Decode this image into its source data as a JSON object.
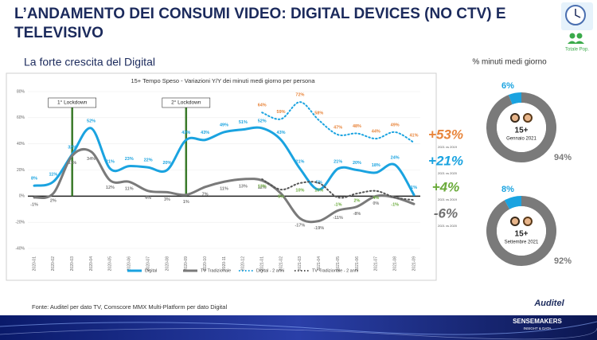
{
  "slide": {
    "title_lines": [
      "L’ANDAMENTO DEI CONSUMI VIDEO: DIGITAL DEVICES (NO CTV) E",
      "TELEVISIVO"
    ],
    "subtitle": "La forte crescita del Digital",
    "target_label": "Totale Pop.",
    "donut_heading": "% minuti medi giorno",
    "source": "Fonte: Auditel per dato TV, Comscore MMX Multi-Platform per dato Digital",
    "logo_auditel": "Auditel",
    "logo_sensemakers": "SENSEMAKERS",
    "logo_tagline": "INSIGHT & DATA"
  },
  "chart_data": [
    {
      "type": "line",
      "title": "15+ Tempo Speso - Variazioni Y/Y dei minuti medi giorno per persona",
      "categories": [
        "2020-01",
        "2020-02",
        "2020-03",
        "2020-04",
        "2020-05",
        "2020-06",
        "2020-07",
        "2020-08",
        "2020-09",
        "2020-10",
        "2020-11",
        "2020-12",
        "2021-01",
        "2021-02",
        "2021-03",
        "2021-04",
        "2021-05",
        "2021-06",
        "2021-07",
        "2021-08",
        "2021-09"
      ],
      "ylim": [
        -40,
        80
      ],
      "yticks": [
        {
          "value": -40,
          "label": "-40%"
        },
        {
          "value": -20,
          "label": "-20%"
        },
        {
          "value": 0,
          "label": "0%"
        },
        {
          "value": 20,
          "label": "20%"
        },
        {
          "value": 40,
          "label": "40%"
        },
        {
          "value": 60,
          "label": "60%"
        },
        {
          "value": 80,
          "label": "80%"
        }
      ],
      "series": [
        {
          "name": "Digital",
          "color": "#1aa3e0",
          "dash": "solid",
          "values": [
            8,
            11,
            32,
            52,
            21,
            23,
            22,
            20,
            43,
            43,
            49,
            51,
            52,
            43,
            21,
            5,
            21,
            20,
            18,
            24,
            1
          ],
          "value_labels": [
            "8%",
            "11%",
            "32%",
            "52%",
            "21%",
            "23%",
            "22%",
            "20%",
            "43%",
            "43%",
            "49%",
            "51%",
            "52%",
            "43%",
            "21%",
            "5%",
            "21%",
            "20%",
            "18%",
            "24%",
            "1%"
          ]
        },
        {
          "name": "TV Tradizionale",
          "color": "#7a7a7a",
          "dash": "solid",
          "values": [
            -1,
            2,
            31,
            34,
            12,
            11,
            4,
            3,
            1,
            7,
            11,
            13,
            12,
            2,
            -17,
            -19,
            -11,
            -8,
            0,
            -1,
            -6
          ],
          "value_labels": [
            "-1%",
            "2%",
            "31%",
            "34%",
            "12%",
            "11%",
            "4%",
            "3%",
            "1%",
            "7%",
            "11%",
            "13%",
            "12%",
            null,
            "-17%",
            "-19%",
            "-11%",
            "-8%",
            "0%",
            null,
            null
          ]
        },
        {
          "name": "Digital - 2 anni",
          "color": "#1aa3e0",
          "label_color": "#e8843a",
          "dash": "dotted",
          "values": [
            null,
            null,
            null,
            null,
            null,
            null,
            null,
            null,
            null,
            null,
            null,
            null,
            64,
            59,
            72,
            58,
            47,
            48,
            44,
            49,
            41
          ],
          "value_labels": [
            null,
            null,
            null,
            null,
            null,
            null,
            null,
            null,
            null,
            null,
            null,
            null,
            "64%",
            "59%",
            "72%",
            "58%",
            "47%",
            "48%",
            "44%",
            "49%",
            "41%"
          ]
        },
        {
          "name": "TV Tradizionale - 2 anni",
          "color": "#555555",
          "label_color": "#6aaa3a",
          "dash": "dotted",
          "values": [
            null,
            null,
            null,
            null,
            null,
            null,
            null,
            null,
            null,
            null,
            null,
            null,
            13,
            5,
            10,
            10,
            -1,
            2,
            4,
            -1,
            -3
          ],
          "value_labels": [
            null,
            null,
            null,
            null,
            null,
            null,
            null,
            null,
            null,
            null,
            null,
            null,
            "13%",
            "5%",
            "10%",
            "10%",
            "-1%",
            "2%",
            "4%",
            "-1%",
            null
          ]
        }
      ],
      "events": [
        {
          "label": "1° Lockdown",
          "x": "2020-03"
        },
        {
          "label": "2° Lockdown",
          "x": "2020-09"
        }
      ],
      "annotations": [
        {
          "text": "+53%",
          "note": "2021 vs 2019",
          "color": "#e8843a"
        },
        {
          "text": "+21%",
          "note": "2021 vs 2020",
          "color": "#1aa3e0"
        },
        {
          "text": "+4%",
          "note": "2021 vs 2019",
          "color": "#6aaa3a"
        },
        {
          "text": "-6%",
          "note": "2021 vs 2020",
          "color": "#707070"
        }
      ],
      "legend": "bottom"
    },
    {
      "type": "pie",
      "title": "15+",
      "subtitle": "Gennaio 2021",
      "values": [
        6,
        94
      ],
      "value_labels": [
        "6%",
        "94%"
      ],
      "colors": [
        "#1aa3e0",
        "#7a7a7a"
      ]
    },
    {
      "type": "pie",
      "title": "15+",
      "subtitle": "Settembre 2021",
      "values": [
        8,
        92
      ],
      "value_labels": [
        "8%",
        "92%"
      ],
      "colors": [
        "#1aa3e0",
        "#7a7a7a"
      ]
    }
  ]
}
